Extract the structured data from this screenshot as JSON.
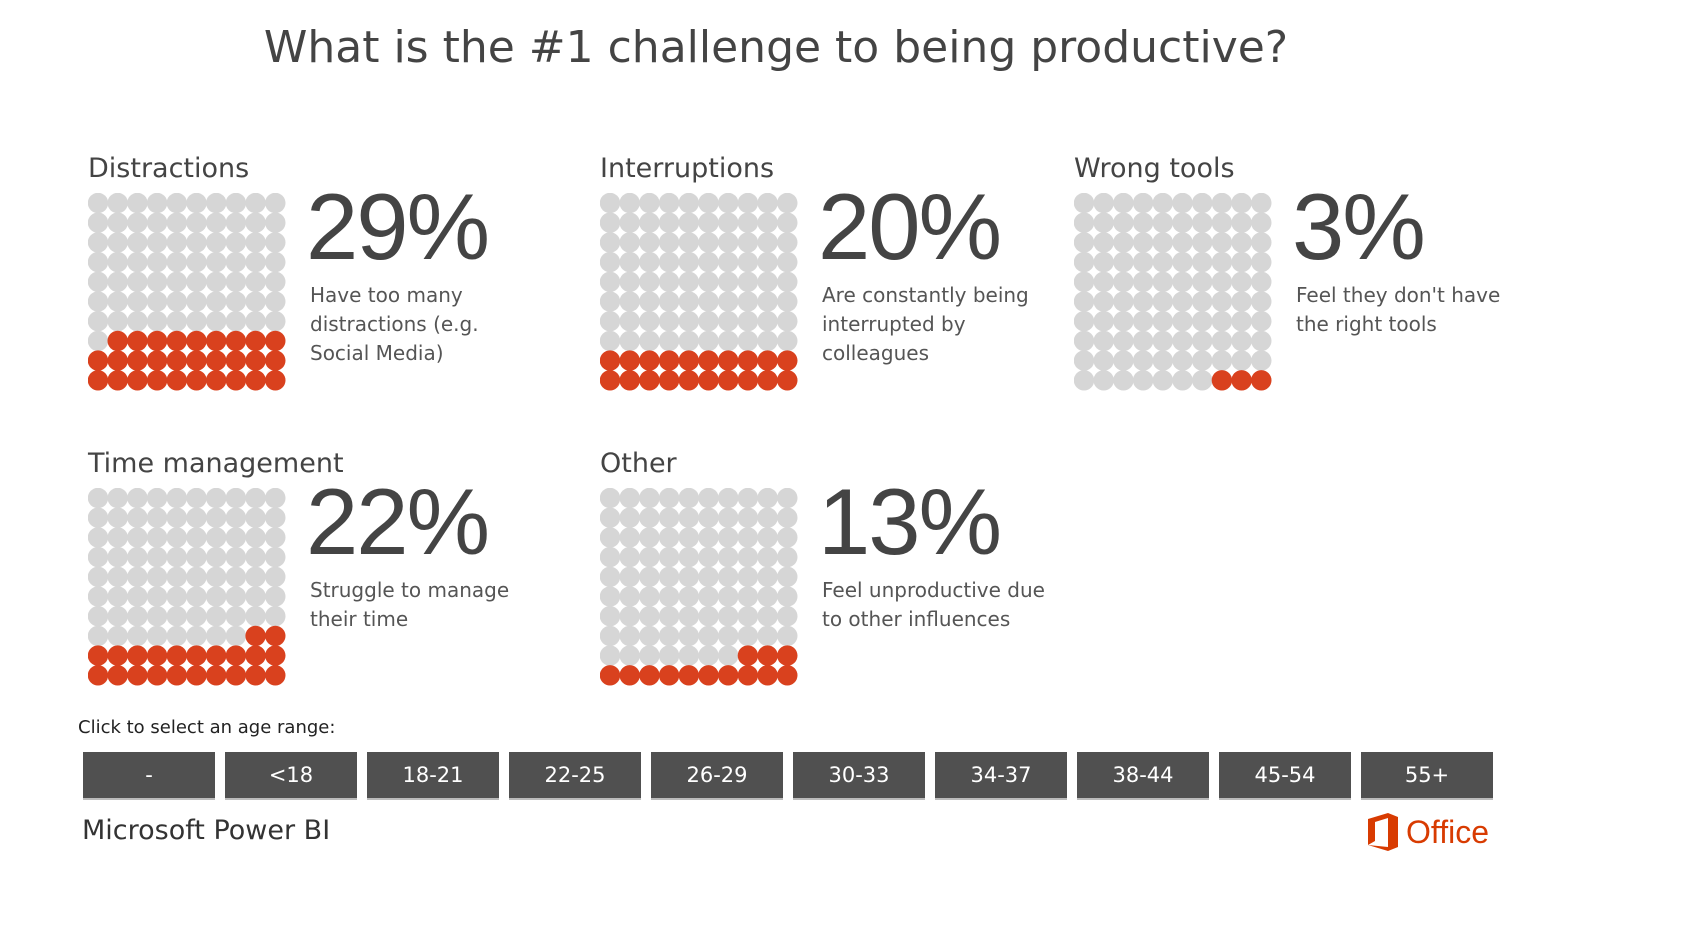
{
  "title": "What is the #1 challenge to being productive?",
  "colors": {
    "filled": "#d9411e",
    "empty": "#d6d6d6",
    "button": "#505050",
    "brand": "#d83b01"
  },
  "chart_data": [
    {
      "type": "waffle",
      "title": "Distractions",
      "value": 29,
      "value_label": "29%",
      "description": "Have too many distractions (e.g. Social Media)",
      "grid": [
        10,
        10
      ]
    },
    {
      "type": "waffle",
      "title": "Interruptions",
      "value": 20,
      "value_label": "20%",
      "description": "Are constantly being interrupted by colleagues",
      "grid": [
        10,
        10
      ]
    },
    {
      "type": "waffle",
      "title": "Wrong tools",
      "value": 3,
      "value_label": "3%",
      "description": "Feel they don't have the right tools",
      "grid": [
        10,
        10
      ]
    },
    {
      "type": "waffle",
      "title": "Time management",
      "value": 22,
      "value_label": "22%",
      "description": "Struggle to manage their time",
      "grid": [
        10,
        10
      ]
    },
    {
      "type": "waffle",
      "title": "Other",
      "value": 13,
      "value_label": "13%",
      "description": "Feel unproductive due to other influences",
      "grid": [
        10,
        10
      ]
    }
  ],
  "age_filter": {
    "label": "Click to select an age range:",
    "options": [
      "-",
      "<18",
      "18-21",
      "22-25",
      "26-29",
      "30-33",
      "34-37",
      "38-44",
      "45-54",
      "55+"
    ]
  },
  "footer": {
    "brand": "Microsoft Power BI",
    "logo": "Office",
    "logo_icon": "office-logo-icon"
  }
}
